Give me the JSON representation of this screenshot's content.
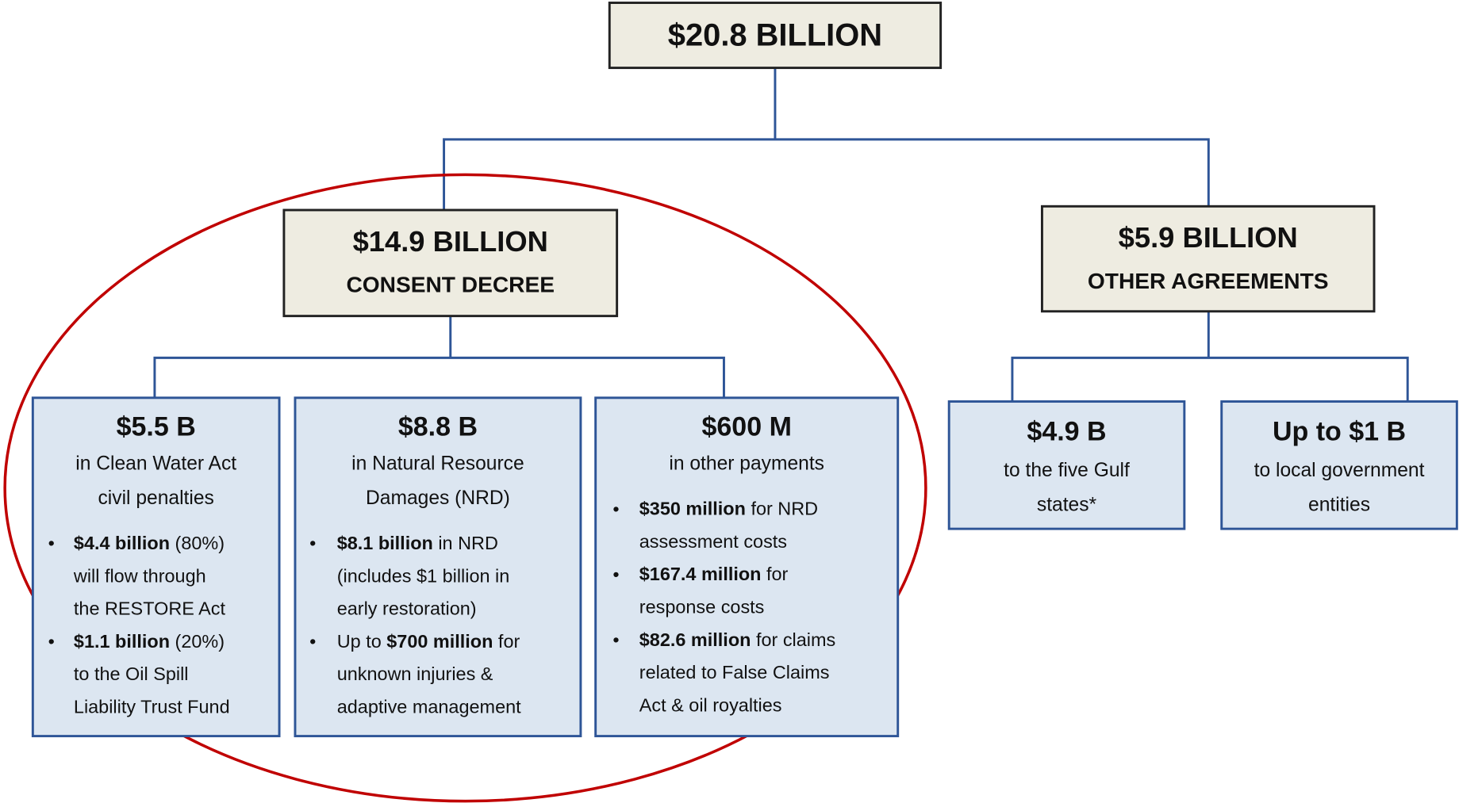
{
  "root": {
    "title": "$20.8 BILLION"
  },
  "branches": [
    {
      "title": "$14.9 BILLION",
      "subtitle": "CONSENT DECREE",
      "children": [
        {
          "title": "$5.5 B",
          "subtitle": [
            "in Clean Water Act",
            "civil penalties"
          ],
          "bullets": [
            [
              [
                {
                  "text": "$4.4 billion",
                  "bold": true
                },
                {
                  "text": " (80%)"
                }
              ],
              [
                {
                  "text": "will flow through"
                }
              ],
              [
                {
                  "text": "the RESTORE Act"
                }
              ]
            ],
            [
              [
                {
                  "text": "$1.1 billion",
                  "bold": true
                },
                {
                  "text": " (20%)"
                }
              ],
              [
                {
                  "text": "to the Oil Spill"
                }
              ],
              [
                {
                  "text": "Liability Trust Fund"
                }
              ]
            ]
          ]
        },
        {
          "title": "$8.8 B",
          "subtitle": [
            "in Natural Resource",
            "Damages (NRD)"
          ],
          "bullets": [
            [
              [
                {
                  "text": "$8.1 billion",
                  "bold": true
                },
                {
                  "text": " in NRD"
                }
              ],
              [
                {
                  "text": "(includes $1 billion in"
                }
              ],
              [
                {
                  "text": "early restoration)"
                }
              ]
            ],
            [
              [
                {
                  "text": "Up to "
                },
                {
                  "text": "$700 million",
                  "bold": true
                },
                {
                  "text": " for"
                }
              ],
              [
                {
                  "text": "unknown injuries &"
                }
              ],
              [
                {
                  "text": "adaptive management"
                }
              ]
            ]
          ]
        },
        {
          "title": "$600 M",
          "subtitle": [
            "in other payments"
          ],
          "bullets": [
            [
              [
                {
                  "text": "$350 million",
                  "bold": true
                },
                {
                  "text": " for NRD"
                }
              ],
              [
                {
                  "text": "assessment costs"
                }
              ]
            ],
            [
              [
                {
                  "text": "$167.4 million",
                  "bold": true
                },
                {
                  "text": " for"
                }
              ],
              [
                {
                  "text": "response costs"
                }
              ]
            ],
            [
              [
                {
                  "text": "$82.6 million",
                  "bold": true
                },
                {
                  "text": " for claims"
                }
              ],
              [
                {
                  "text": "related to False Claims"
                }
              ],
              [
                {
                  "text": "Act & oil royalties"
                }
              ]
            ]
          ]
        }
      ]
    },
    {
      "title": "$5.9 BILLION",
      "subtitle": "OTHER AGREEMENTS",
      "children": [
        {
          "title": "$4.9 B",
          "subtitle": [
            "to the five Gulf",
            "states*"
          ],
          "bullets": []
        },
        {
          "title": "Up to $1 B",
          "subtitle": [
            "to local government",
            "entities"
          ],
          "bullets": []
        }
      ]
    }
  ]
}
